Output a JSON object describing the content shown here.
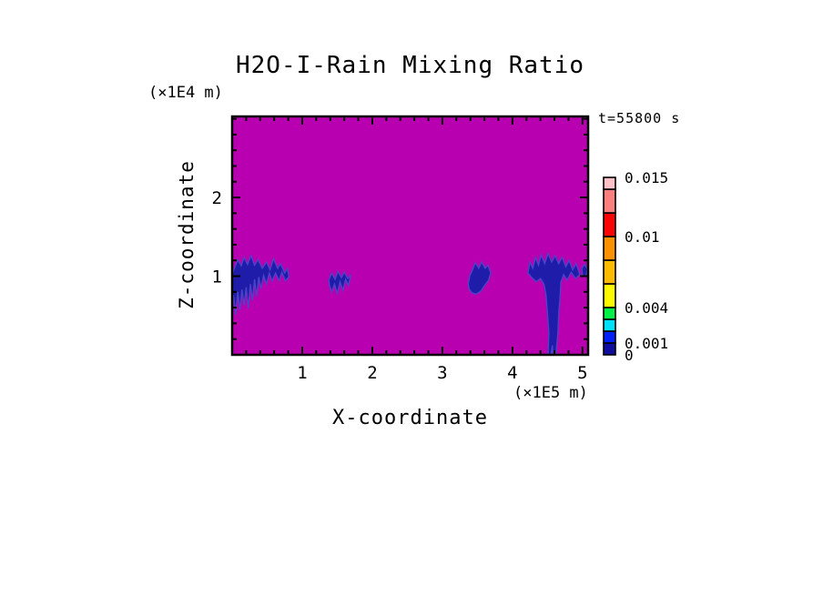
{
  "chart_data": {
    "type": "heatmap",
    "title": "H2O-I-Rain Mixing Ratio",
    "time_annotation": "t=55800 s",
    "x_axis": {
      "label": "X-coordinate",
      "units": "(×1E5 m)",
      "range": [
        0,
        5.08
      ],
      "major_ticks": [
        1,
        2,
        3,
        4,
        5
      ],
      "minor_tick_interval": 0.2
    },
    "z_axis": {
      "label": "Z-coordinate",
      "units": "(×1E4 m)",
      "range": [
        0,
        3.03
      ],
      "major_ticks": [
        1,
        2
      ],
      "minor_tick_interval": 0.2
    },
    "colorbar": {
      "levels": [
        0,
        0.001,
        0.002,
        0.003,
        0.004,
        0.006,
        0.008,
        0.01,
        0.012,
        0.014,
        0.015
      ],
      "colors": [
        "#100C9E",
        "#0020F5",
        "#00E0F8",
        "#00F04A",
        "#FCFA00",
        "#FBBB00",
        "#FA9100",
        "#F90505",
        "#FA8080",
        "#FFC0C8"
      ],
      "tick_labels": [
        {
          "value": 0.015,
          "text": "0.015"
        },
        {
          "value": 0.01,
          "text": "0.01"
        },
        {
          "value": 0.004,
          "text": "0.004"
        },
        {
          "value": 0.001,
          "text": "0.001"
        },
        {
          "value": 0,
          "text": "0"
        }
      ]
    },
    "background_value": 0,
    "background_color": "#B800B0",
    "feature_fill_color": "#1E1CA8",
    "feature_edge_color": "#4A42C8",
    "frame_color": "#000000",
    "features": [
      {
        "name": "rain-cell-left",
        "value_bin": "0-0.001",
        "x_extent": [
          0,
          0.82
        ],
        "z_extent": [
          0.51,
          1.26
        ],
        "polygon": [
          [
            0,
            1.02
          ],
          [
            0.04,
            1.12
          ],
          [
            0.08,
            1.21
          ],
          [
            0.13,
            1.13
          ],
          [
            0.17,
            1.24
          ],
          [
            0.22,
            1.15
          ],
          [
            0.27,
            1.26
          ],
          [
            0.32,
            1.14
          ],
          [
            0.37,
            1.21
          ],
          [
            0.43,
            1.1
          ],
          [
            0.49,
            1.18
          ],
          [
            0.54,
            1.08
          ],
          [
            0.59,
            1.22
          ],
          [
            0.65,
            1.1
          ],
          [
            0.69,
            1.16
          ],
          [
            0.75,
            1.04
          ],
          [
            0.79,
            1.1
          ],
          [
            0.81,
            0.99
          ],
          [
            0.76,
            0.94
          ],
          [
            0.71,
            1.05
          ],
          [
            0.67,
            0.94
          ],
          [
            0.62,
            1.04
          ],
          [
            0.57,
            0.94
          ],
          [
            0.53,
            1.04
          ],
          [
            0.49,
            0.9
          ],
          [
            0.45,
            1.01
          ],
          [
            0.41,
            0.84
          ],
          [
            0.38,
            0.99
          ],
          [
            0.35,
            0.74
          ],
          [
            0.32,
            0.96
          ],
          [
            0.29,
            0.69
          ],
          [
            0.26,
            0.9
          ],
          [
            0.23,
            0.59
          ],
          [
            0.2,
            0.86
          ],
          [
            0.17,
            0.63
          ],
          [
            0.14,
            0.83
          ],
          [
            0.11,
            0.57
          ],
          [
            0.08,
            0.8
          ],
          [
            0.05,
            0.51
          ],
          [
            0.02,
            0.76
          ],
          [
            0,
            0.6
          ]
        ]
      },
      {
        "name": "rain-cell-2",
        "value_bin": "0-0.001",
        "x_extent": [
          1.38,
          1.69
        ],
        "z_extent": [
          0.78,
          1.06
        ],
        "polygon": [
          [
            1.38,
            0.95
          ],
          [
            1.42,
            1.04
          ],
          [
            1.47,
            0.96
          ],
          [
            1.51,
            1.06
          ],
          [
            1.56,
            0.98
          ],
          [
            1.6,
            1.05
          ],
          [
            1.65,
            0.97
          ],
          [
            1.69,
            1.01
          ],
          [
            1.66,
            0.88
          ],
          [
            1.62,
            0.96
          ],
          [
            1.58,
            0.82
          ],
          [
            1.54,
            0.93
          ],
          [
            1.5,
            0.78
          ],
          [
            1.46,
            0.9
          ],
          [
            1.42,
            0.8
          ],
          [
            1.39,
            0.88
          ]
        ]
      },
      {
        "name": "rain-cell-3",
        "value_bin": "0-0.001",
        "x_extent": [
          3.37,
          3.69
        ],
        "z_extent": [
          0.77,
          1.18
        ],
        "polygon": [
          [
            3.37,
            0.9
          ],
          [
            3.39,
            1.0
          ],
          [
            3.43,
            1.08
          ],
          [
            3.47,
            1.17
          ],
          [
            3.52,
            1.1
          ],
          [
            3.56,
            1.18
          ],
          [
            3.61,
            1.1
          ],
          [
            3.65,
            1.14
          ],
          [
            3.69,
            1.04
          ],
          [
            3.66,
            0.95
          ],
          [
            3.6,
            0.88
          ],
          [
            3.55,
            0.81
          ],
          [
            3.48,
            0.77
          ],
          [
            3.42,
            0.79
          ],
          [
            3.38,
            0.84
          ]
        ]
      },
      {
        "name": "rain-storm-column",
        "value_bin": "0-0.001",
        "x_extent": [
          4.22,
          4.96
        ],
        "z_extent": [
          0,
          1.29
        ],
        "polygon": [
          [
            4.22,
            1.04
          ],
          [
            4.25,
            1.18
          ],
          [
            4.29,
            1.1
          ],
          [
            4.33,
            1.24
          ],
          [
            4.37,
            1.14
          ],
          [
            4.41,
            1.27
          ],
          [
            4.46,
            1.16
          ],
          [
            4.51,
            1.29
          ],
          [
            4.56,
            1.18
          ],
          [
            4.61,
            1.26
          ],
          [
            4.66,
            1.16
          ],
          [
            4.71,
            1.24
          ],
          [
            4.76,
            1.12
          ],
          [
            4.81,
            1.2
          ],
          [
            4.86,
            1.08
          ],
          [
            4.91,
            1.16
          ],
          [
            4.96,
            1.02
          ],
          [
            4.9,
            0.97
          ],
          [
            4.84,
            1.05
          ],
          [
            4.78,
            0.95
          ],
          [
            4.73,
            1.02
          ],
          [
            4.69,
            0.92
          ],
          [
            4.68,
            0.74
          ],
          [
            4.66,
            0.52
          ],
          [
            4.65,
            0.3
          ],
          [
            4.63,
            0.1
          ],
          [
            4.62,
            0
          ],
          [
            4.58,
            0
          ],
          [
            4.57,
            0.12
          ],
          [
            4.55,
            0
          ],
          [
            4.51,
            0
          ],
          [
            4.52,
            0.28
          ],
          [
            4.5,
            0.52
          ],
          [
            4.48,
            0.76
          ],
          [
            4.45,
            0.9
          ],
          [
            4.4,
            0.97
          ],
          [
            4.34,
            0.93
          ],
          [
            4.28,
            0.98
          ]
        ]
      },
      {
        "name": "rain-speckle-right-edge",
        "value_bin": "0-0.001",
        "x_extent": [
          4.99,
          5.07
        ],
        "z_extent": [
          1.0,
          1.15
        ],
        "polygon": [
          [
            4.99,
            1.1
          ],
          [
            5.03,
            1.15
          ],
          [
            5.07,
            1.09
          ],
          [
            5.05,
            1.0
          ],
          [
            5.0,
            1.01
          ]
        ]
      }
    ]
  }
}
